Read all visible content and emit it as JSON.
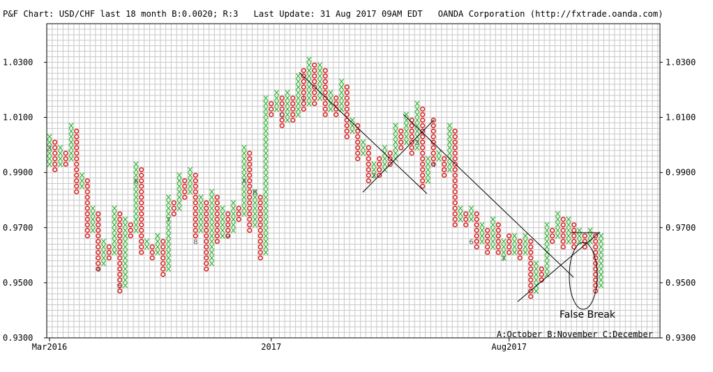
{
  "header": {
    "title": "P&F Chart: USD/CHF last 18 month B:0.0020; R:3",
    "update": "Last Update: 31 Aug 2017 09AM EDT",
    "source": "OANDA Corporation (http://fxtrade.oanda.com)"
  },
  "colors": {
    "x": "#2fb52f",
    "o": "#e01818",
    "grid": "#c8c8c8"
  },
  "chart_data": {
    "type": "point-and-figure",
    "box_size": 0.002,
    "reversal": 3,
    "ylim": [
      0.93,
      1.044
    ],
    "y_ticks": [
      "0.9300",
      "0.9500",
      "0.9700",
      "0.9900",
      "1.0100",
      "1.0300"
    ],
    "x_labels": [
      {
        "col": 0,
        "label": "Mar2016"
      },
      {
        "col": 41,
        "label": "2017"
      },
      {
        "col": 85,
        "label": "Aug2017"
      }
    ],
    "legend_note": "A:October B:November C:December",
    "columns": [
      {
        "t": "X",
        "lo": 0.993,
        "hi": 1.003
      },
      {
        "t": "O",
        "lo": 0.991,
        "hi": 1.001
      },
      {
        "t": "X",
        "lo": 0.993,
        "hi": 0.999
      },
      {
        "t": "O",
        "lo": 0.993,
        "hi": 0.997
      },
      {
        "t": "X",
        "lo": 0.995,
        "hi": 1.007
      },
      {
        "t": "O",
        "lo": 0.983,
        "hi": 1.005
      },
      {
        "t": "X",
        "lo": 0.985,
        "hi": 0.989
      },
      {
        "t": "O",
        "lo": 0.967,
        "hi": 0.987
      },
      {
        "t": "X",
        "lo": 0.969,
        "hi": 0.977
      },
      {
        "t": "O",
        "lo": 0.955,
        "hi": 0.975
      },
      {
        "t": "X",
        "lo": 0.957,
        "hi": 0.965
      },
      {
        "t": "O",
        "lo": 0.959,
        "hi": 0.963
      },
      {
        "t": "X",
        "lo": 0.961,
        "hi": 0.977
      },
      {
        "t": "O",
        "lo": 0.947,
        "hi": 0.975
      },
      {
        "t": "X",
        "lo": 0.949,
        "hi": 0.973
      },
      {
        "t": "O",
        "lo": 0.967,
        "hi": 0.971
      },
      {
        "t": "X",
        "lo": 0.969,
        "hi": 0.993
      },
      {
        "t": "O",
        "lo": 0.961,
        "hi": 0.991
      },
      {
        "t": "X",
        "lo": 0.963,
        "hi": 0.965
      },
      {
        "t": "O",
        "lo": 0.959,
        "hi": 0.963
      },
      {
        "t": "X",
        "lo": 0.961,
        "hi": 0.967
      },
      {
        "t": "O",
        "lo": 0.953,
        "hi": 0.965
      },
      {
        "t": "X",
        "lo": 0.955,
        "hi": 0.981
      },
      {
        "t": "O",
        "lo": 0.975,
        "hi": 0.979
      },
      {
        "t": "X",
        "lo": 0.977,
        "hi": 0.989
      },
      {
        "t": "O",
        "lo": 0.981,
        "hi": 0.987
      },
      {
        "t": "X",
        "lo": 0.983,
        "hi": 0.991
      },
      {
        "t": "O",
        "lo": 0.967,
        "hi": 0.989
      },
      {
        "t": "X",
        "lo": 0.969,
        "hi": 0.981
      },
      {
        "t": "O",
        "lo": 0.955,
        "hi": 0.979
      },
      {
        "t": "X",
        "lo": 0.957,
        "hi": 0.983
      },
      {
        "t": "O",
        "lo": 0.965,
        "hi": 0.981
      },
      {
        "t": "X",
        "lo": 0.967,
        "hi": 0.977
      },
      {
        "t": "O",
        "lo": 0.967,
        "hi": 0.975
      },
      {
        "t": "X",
        "lo": 0.969,
        "hi": 0.979
      },
      {
        "t": "O",
        "lo": 0.973,
        "hi": 0.977
      },
      {
        "t": "X",
        "lo": 0.975,
        "hi": 0.999
      },
      {
        "t": "O",
        "lo": 0.969,
        "hi": 0.997
      },
      {
        "t": "X",
        "lo": 0.971,
        "hi": 0.983
      },
      {
        "t": "O",
        "lo": 0.959,
        "hi": 0.981
      },
      {
        "t": "X",
        "lo": 0.961,
        "hi": 1.017
      },
      {
        "t": "O",
        "lo": 1.011,
        "hi": 1.015
      },
      {
        "t": "X",
        "lo": 1.013,
        "hi": 1.019
      },
      {
        "t": "O",
        "lo": 1.007,
        "hi": 1.017
      },
      {
        "t": "X",
        "lo": 1.009,
        "hi": 1.019
      },
      {
        "t": "O",
        "lo": 1.009,
        "hi": 1.017
      },
      {
        "t": "X",
        "lo": 1.011,
        "hi": 1.025
      },
      {
        "t": "O",
        "lo": 1.013,
        "hi": 1.027
      },
      {
        "t": "X",
        "lo": 1.015,
        "hi": 1.031
      },
      {
        "t": "O",
        "lo": 1.015,
        "hi": 1.029
      },
      {
        "t": "X",
        "lo": 1.017,
        "hi": 1.029
      },
      {
        "t": "O",
        "lo": 1.011,
        "hi": 1.027
      },
      {
        "t": "X",
        "lo": 1.013,
        "hi": 1.019
      },
      {
        "t": "O",
        "lo": 1.011,
        "hi": 1.017
      },
      {
        "t": "X",
        "lo": 1.013,
        "hi": 1.023
      },
      {
        "t": "O",
        "lo": 1.003,
        "hi": 1.021
      },
      {
        "t": "X",
        "lo": 1.005,
        "hi": 1.009
      },
      {
        "t": "O",
        "lo": 0.995,
        "hi": 1.007
      },
      {
        "t": "X",
        "lo": 0.997,
        "hi": 1.001
      },
      {
        "t": "O",
        "lo": 0.987,
        "hi": 0.999
      },
      {
        "t": "X",
        "lo": 0.989,
        "hi": 0.993
      },
      {
        "t": "O",
        "lo": 0.989,
        "hi": 0.995
      },
      {
        "t": "X",
        "lo": 0.991,
        "hi": 0.999
      },
      {
        "t": "O",
        "lo": 0.993,
        "hi": 0.997
      },
      {
        "t": "X",
        "lo": 0.995,
        "hi": 1.007
      },
      {
        "t": "O",
        "lo": 0.999,
        "hi": 1.005
      },
      {
        "t": "X",
        "lo": 1.001,
        "hi": 1.011
      },
      {
        "t": "O",
        "lo": 0.997,
        "hi": 1.009
      },
      {
        "t": "X",
        "lo": 0.999,
        "hi": 1.015
      },
      {
        "t": "O",
        "lo": 0.985,
        "hi": 1.013
      },
      {
        "t": "X",
        "lo": 0.987,
        "hi": 0.995
      },
      {
        "t": "O",
        "lo": 0.993,
        "hi": 1.009
      },
      {
        "t": "X",
        "lo": 0.995,
        "hi": 0.997
      },
      {
        "t": "O",
        "lo": 0.989,
        "hi": 0.995
      },
      {
        "t": "X",
        "lo": 0.991,
        "hi": 1.007
      },
      {
        "t": "O",
        "lo": 0.971,
        "hi": 1.005
      },
      {
        "t": "X",
        "lo": 0.973,
        "hi": 0.977
      },
      {
        "t": "O",
        "lo": 0.971,
        "hi": 0.975
      },
      {
        "t": "X",
        "lo": 0.973,
        "hi": 0.977
      },
      {
        "t": "O",
        "lo": 0.963,
        "hi": 0.975
      },
      {
        "t": "X",
        "lo": 0.965,
        "hi": 0.971
      },
      {
        "t": "O",
        "lo": 0.961,
        "hi": 0.969
      },
      {
        "t": "X",
        "lo": 0.963,
        "hi": 0.973
      },
      {
        "t": "O",
        "lo": 0.961,
        "hi": 0.971
      },
      {
        "t": "X",
        "lo": 0.959,
        "hi": 0.965
      },
      {
        "t": "O",
        "lo": 0.961,
        "hi": 0.967
      },
      {
        "t": "X",
        "lo": 0.961,
        "hi": 0.967
      },
      {
        "t": "O",
        "lo": 0.959,
        "hi": 0.965
      },
      {
        "t": "X",
        "lo": 0.961,
        "hi": 0.967
      },
      {
        "t": "O",
        "lo": 0.945,
        "hi": 0.965
      },
      {
        "t": "X",
        "lo": 0.947,
        "hi": 0.957
      },
      {
        "t": "O",
        "lo": 0.951,
        "hi": 0.955
      },
      {
        "t": "X",
        "lo": 0.953,
        "hi": 0.971
      },
      {
        "t": "O",
        "lo": 0.965,
        "hi": 0.969
      },
      {
        "t": "X",
        "lo": 0.967,
        "hi": 0.975
      },
      {
        "t": "O",
        "lo": 0.963,
        "hi": 0.973
      },
      {
        "t": "X",
        "lo": 0.965,
        "hi": 0.973
      },
      {
        "t": "O",
        "lo": 0.963,
        "hi": 0.971
      },
      {
        "t": "X",
        "lo": 0.965,
        "hi": 0.969
      },
      {
        "t": "O",
        "lo": 0.963,
        "hi": 0.967
      },
      {
        "t": "X",
        "lo": 0.965,
        "hi": 0.969
      },
      {
        "t": "O",
        "lo": 0.947,
        "hi": 0.967
      },
      {
        "t": "X",
        "lo": 0.949,
        "hi": 0.967
      }
    ],
    "month_markers": [
      {
        "col": 0,
        "y": 0.999,
        "label": "3"
      },
      {
        "col": 9,
        "y": 0.955,
        "label": "4"
      },
      {
        "col": 13,
        "y": 0.949,
        "label": "5"
      },
      {
        "col": 16,
        "y": 0.987,
        "label": "6"
      },
      {
        "col": 22,
        "y": 0.973,
        "label": "7"
      },
      {
        "col": 27,
        "y": 0.965,
        "label": "8"
      },
      {
        "col": 33,
        "y": 0.967,
        "label": "9"
      },
      {
        "col": 36,
        "y": 0.987,
        "label": "A"
      },
      {
        "col": 38,
        "y": 0.983,
        "label": "B"
      },
      {
        "col": 43,
        "y": 1.011,
        "label": "C"
      },
      {
        "col": 47,
        "y": 1.017,
        "label": "1"
      },
      {
        "col": 60,
        "y": 0.989,
        "label": "2"
      },
      {
        "col": 68,
        "y": 1.001,
        "label": "3"
      },
      {
        "col": 71,
        "y": 0.993,
        "label": "4"
      },
      {
        "col": 78,
        "y": 0.965,
        "label": "6"
      },
      {
        "col": 84,
        "y": 0.959,
        "label": "7"
      }
    ],
    "annotation": "False Break"
  }
}
